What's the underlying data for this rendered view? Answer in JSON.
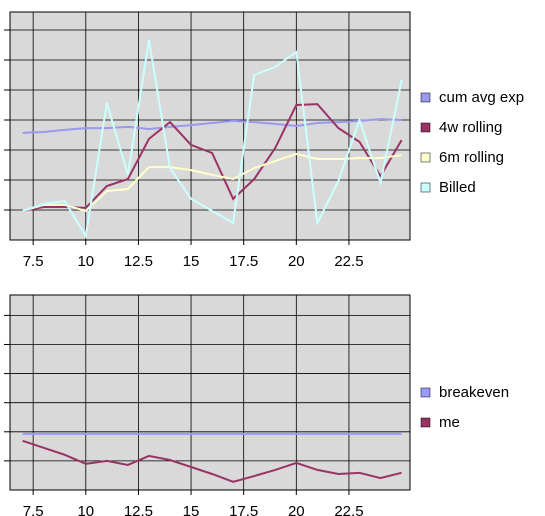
{
  "chart_data": [
    {
      "type": "line",
      "x": [
        7,
        8,
        9,
        10,
        11,
        12,
        13,
        14,
        15,
        16,
        17,
        18,
        19,
        20,
        21,
        22,
        23,
        24,
        25
      ],
      "xlim": [
        6.4,
        25.4
      ],
      "xticks": [
        7.5,
        10,
        12.5,
        15,
        17.5,
        20,
        22.5
      ],
      "ylim": [
        0,
        7.6
      ],
      "yticks": [
        1,
        2,
        3,
        4,
        5,
        6,
        7
      ],
      "grid": true,
      "legend": "right",
      "series": [
        {
          "name": "cum avg exp",
          "color": "#9999ee",
          "values": [
            3.57,
            3.6,
            3.67,
            3.73,
            3.73,
            3.77,
            3.7,
            3.77,
            3.83,
            3.9,
            3.97,
            3.93,
            3.87,
            3.8,
            3.9,
            3.93,
            3.97,
            4.03,
            4
          ]
        },
        {
          "name": "4w rolling",
          "color": "#993366",
          "values": [
            0.97,
            1.1,
            1.1,
            1.07,
            1.8,
            2.03,
            3.37,
            3.93,
            3.17,
            2.9,
            1.37,
            2.03,
            3.07,
            4.5,
            4.53,
            3.73,
            3.27,
            2.13,
            3.33
          ]
        },
        {
          "name": "6m rolling",
          "color": "#ffffcc",
          "values": [
            0.97,
            1.17,
            1.17,
            0.97,
            1.63,
            1.7,
            2.43,
            2.43,
            2.33,
            2.17,
            2.03,
            2.4,
            2.63,
            2.87,
            2.7,
            2.7,
            2.73,
            2.73,
            2.83
          ]
        },
        {
          "name": "Billed",
          "color": "#ccffff",
          "values": [
            0.97,
            1.2,
            1.3,
            0.13,
            4.57,
            2.17,
            6.67,
            2.4,
            1.37,
            0.97,
            0.57,
            5.5,
            5.77,
            6.27,
            0.57,
            1.97,
            4,
            1.9,
            5.33
          ]
        }
      ]
    },
    {
      "type": "line",
      "x": [
        7,
        8,
        9,
        10,
        11,
        12,
        13,
        14,
        15,
        16,
        17,
        18,
        19,
        20,
        21,
        22,
        23,
        24,
        25
      ],
      "xlim": [
        6.4,
        25.4
      ],
      "xticks": [
        7.5,
        10,
        12.5,
        15,
        17.5,
        20,
        22.5
      ],
      "ylim": [
        0,
        6.7
      ],
      "yticks": [
        1,
        2,
        3,
        4,
        5,
        6
      ],
      "grid": true,
      "legend": "right",
      "series": [
        {
          "name": "breakeven",
          "color": "#9999ff",
          "values": [
            1.93,
            1.93,
            1.93,
            1.93,
            1.93,
            1.93,
            1.93,
            1.93,
            1.93,
            1.93,
            1.93,
            1.93,
            1.93,
            1.93,
            1.93,
            1.93,
            1.93,
            1.93,
            1.93
          ]
        },
        {
          "name": "me",
          "color": "#993366",
          "values": [
            1.69,
            1.45,
            1.21,
            0.9,
            1,
            0.86,
            1.17,
            1.03,
            0.79,
            0.55,
            0.28,
            0.48,
            0.69,
            0.93,
            0.69,
            0.55,
            0.59,
            0.41,
            0.59
          ]
        }
      ]
    }
  ]
}
